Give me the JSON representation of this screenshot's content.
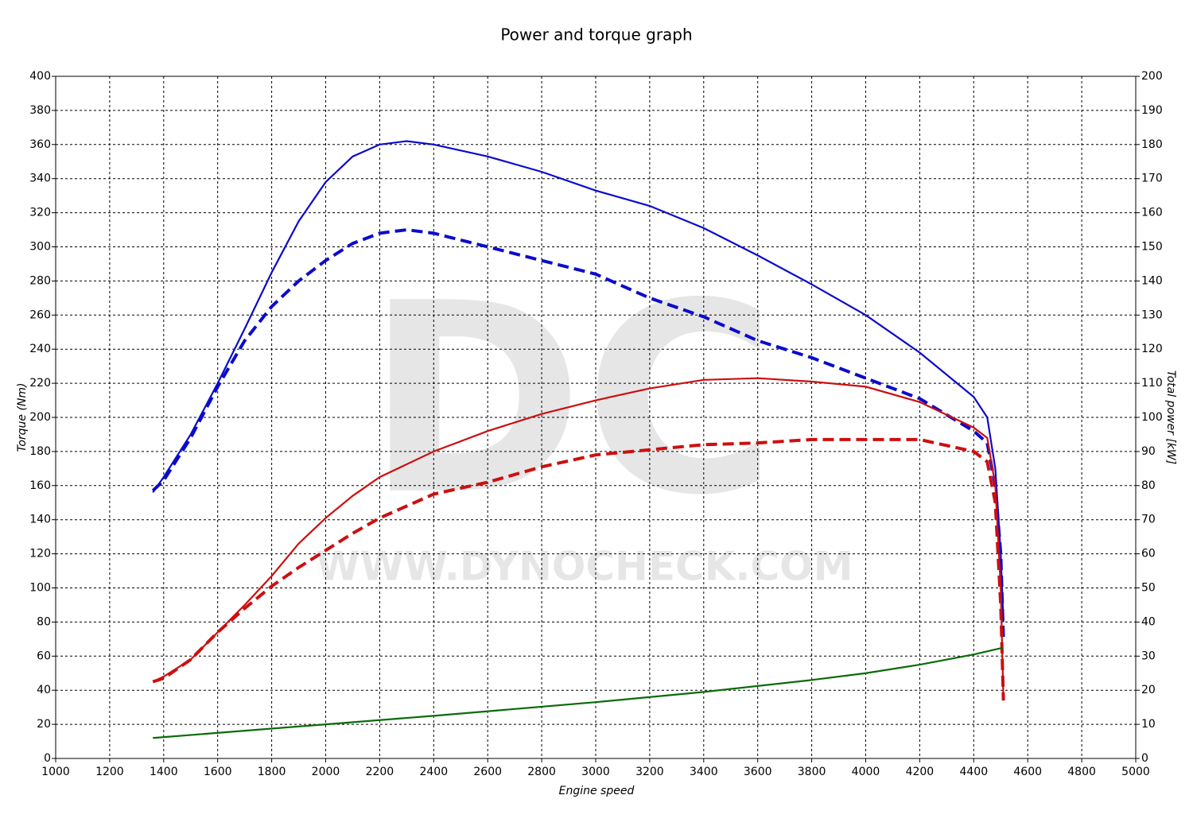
{
  "chart_data": {
    "type": "line",
    "title": "Power and torque graph",
    "watermark": [
      "DC",
      "WWW.DYNOCHECK.COM"
    ],
    "x_label": "Engine speed",
    "y_label": "Torque (Nm)",
    "y2_label": "Total power [kW]",
    "xlim": [
      1000,
      5000
    ],
    "xticks": [
      1000,
      1200,
      1400,
      1600,
      1800,
      2000,
      2200,
      2400,
      2600,
      2800,
      3000,
      3200,
      3400,
      3600,
      3800,
      4000,
      4200,
      4400,
      4600,
      4800,
      5000
    ],
    "ylim": [
      0,
      400
    ],
    "yticks": [
      0,
      20,
      40,
      60,
      80,
      100,
      120,
      140,
      160,
      180,
      200,
      220,
      240,
      260,
      280,
      300,
      320,
      340,
      360,
      380,
      400
    ],
    "y2lim": [
      0,
      200
    ],
    "y2ticks": [
      0,
      10,
      20,
      30,
      40,
      50,
      60,
      70,
      80,
      90,
      100,
      110,
      120,
      130,
      140,
      150,
      160,
      170,
      180,
      190,
      200
    ],
    "grid": true,
    "series": [
      {
        "color": "#0b0bcc",
        "style": "solid",
        "axis": "y",
        "x": [
          1360,
          1400,
          1500,
          1600,
          1700,
          1800,
          1900,
          2000,
          2100,
          2200,
          2300,
          2400,
          2600,
          2800,
          3000,
          3200,
          3400,
          3600,
          3800,
          4000,
          4200,
          4400,
          4450,
          4480,
          4500,
          4510
        ],
        "values": [
          156,
          165,
          190,
          220,
          252,
          285,
          315,
          338,
          353,
          360,
          362,
          360,
          353,
          344,
          333,
          324,
          311,
          295,
          278,
          260,
          238,
          212,
          200,
          170,
          120,
          80
        ]
      },
      {
        "color": "#0b0bcc",
        "style": "dashed",
        "axis": "y",
        "x": [
          1360,
          1400,
          1500,
          1600,
          1700,
          1800,
          1900,
          2000,
          2100,
          2200,
          2300,
          2400,
          2600,
          2800,
          3000,
          3200,
          3400,
          3600,
          3800,
          4000,
          4200,
          4400,
          4450,
          4480,
          4500,
          4510
        ],
        "values": [
          157,
          163,
          188,
          218,
          245,
          265,
          280,
          292,
          302,
          308,
          310,
          308,
          300,
          292,
          284,
          270,
          259,
          245,
          235,
          223,
          211,
          192,
          185,
          160,
          120,
          70
        ]
      },
      {
        "color": "#cc0f0f",
        "style": "solid",
        "axis": "y2",
        "x": [
          1360,
          1400,
          1500,
          1600,
          1700,
          1800,
          1900,
          2000,
          2100,
          2200,
          2400,
          2600,
          2800,
          3000,
          3200,
          3400,
          3600,
          3800,
          4000,
          4200,
          4400,
          4450,
          4480,
          4500,
          4510
        ],
        "values": [
          22.5,
          24,
          29,
          37,
          45,
          53.5,
          63,
          70.5,
          77,
          82.5,
          90,
          96,
          101,
          105,
          108.5,
          111,
          111.5,
          110.5,
          109,
          104.5,
          97,
          94,
          80,
          50,
          17
        ]
      },
      {
        "color": "#cc0f0f",
        "style": "dashed",
        "axis": "y2",
        "x": [
          1360,
          1400,
          1500,
          1600,
          1700,
          1800,
          1900,
          2000,
          2100,
          2200,
          2400,
          2600,
          2800,
          3000,
          3200,
          3400,
          3600,
          3800,
          4000,
          4200,
          4400,
          4450,
          4480,
          4500,
          4510
        ],
        "values": [
          22.5,
          23.5,
          29,
          37,
          44,
          50.5,
          56,
          61,
          66,
          70.5,
          77.5,
          81,
          85.5,
          89,
          90.5,
          92,
          92.5,
          93.5,
          93.5,
          93.5,
          90,
          87,
          75,
          45,
          17
        ]
      },
      {
        "color": "#0a6b0a",
        "style": "solid",
        "axis": "y2",
        "x": [
          1360,
          2000,
          2400,
          3000,
          3400,
          3800,
          4000,
          4200,
          4400,
          4510
        ],
        "values": [
          6,
          10,
          12.5,
          16.5,
          19.5,
          23,
          25,
          27.5,
          30.5,
          32.5
        ]
      }
    ]
  }
}
